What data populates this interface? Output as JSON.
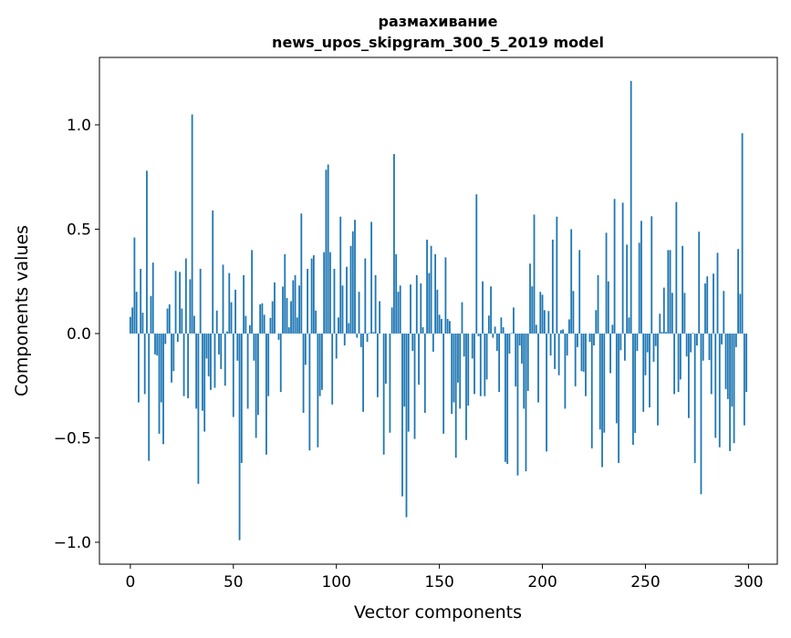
{
  "chart_data": {
    "type": "bar",
    "title": "размахивание",
    "subtitle": "news_upos_skipgram_300_5_2019 model",
    "xlabel": "Vector components",
    "ylabel": "Components values",
    "xlim": [
      -15,
      314
    ],
    "ylim": [
      -1.105,
      1.323
    ],
    "xticks": [
      0,
      50,
      100,
      150,
      200,
      250,
      300
    ],
    "xtick_labels": [
      "0",
      "50",
      "100",
      "150",
      "200",
      "250",
      "300"
    ],
    "yticks": [
      -1.0,
      -0.5,
      0.0,
      0.5,
      1.0
    ],
    "ytick_labels": [
      "−1.0",
      "−0.5",
      "0.0",
      "0.5",
      "1.0"
    ],
    "grid": false,
    "bar_color": "#1f77b4",
    "values": [
      0.08,
      0.125,
      0.46,
      0.2,
      -0.33,
      0.31,
      0.1,
      -0.29,
      0.78,
      -0.61,
      0.18,
      0.34,
      -0.1,
      -0.105,
      -0.48,
      -0.33,
      -0.53,
      -0.05,
      0.12,
      0.14,
      -0.235,
      -0.18,
      0.3,
      -0.04,
      0.295,
      0.12,
      -0.3,
      0.36,
      -0.31,
      0.26,
      1.05,
      0.085,
      -0.36,
      -0.72,
      0.31,
      -0.37,
      -0.47,
      -0.12,
      -0.205,
      -0.27,
      0.59,
      -0.26,
      0.11,
      -0.1,
      -0.17,
      0.33,
      -0.25,
      0.01,
      0.29,
      0.15,
      -0.4,
      0.21,
      -0.13,
      -0.99,
      -0.62,
      0.28,
      0.085,
      -0.36,
      0.04,
      0.4,
      -0.13,
      -0.5,
      -0.39,
      0.14,
      0.145,
      0.09,
      -0.58,
      -0.3,
      0.075,
      0.155,
      0.245,
      0.0,
      -0.03,
      -0.28,
      0.225,
      0.38,
      0.17,
      0.03,
      0.155,
      0.255,
      0.28,
      0.077,
      0.23,
      0.575,
      -0.38,
      -0.15,
      0.31,
      -0.56,
      0.36,
      0.375,
      0.11,
      -0.545,
      -0.3,
      -0.27,
      0.39,
      0.785,
      0.81,
      0.39,
      -0.34,
      0.31,
      -0.12,
      0.077,
      0.56,
      0.23,
      -0.057,
      0.32,
      0.05,
      0.42,
      0.49,
      0.545,
      -0.02,
      0.2,
      -0.065,
      -0.375,
      0.36,
      -0.04,
      0.003,
      0.535,
      0.007,
      0.28,
      -0.305,
      0.155,
      0.0,
      -0.58,
      -0.24,
      0.0,
      -0.475,
      0.125,
      0.86,
      0.38,
      0.2,
      0.23,
      -0.78,
      -0.35,
      -0.88,
      -0.47,
      0.235,
      -0.083,
      -0.505,
      0.28,
      -0.245,
      0.24,
      0.03,
      -0.38,
      0.45,
      0.29,
      0.42,
      -0.087,
      0.38,
      0.21,
      0.09,
      0.07,
      -0.48,
      0.365,
      0.07,
      0.06,
      -0.385,
      -0.33,
      -0.595,
      -0.235,
      -0.36,
      0.15,
      -0.11,
      -0.51,
      -0.345,
      0.0,
      -0.12,
      -0.29,
      0.667,
      -0.013,
      -0.3,
      0.25,
      -0.3,
      -0.22,
      0.086,
      0.226,
      -0.02,
      0.033,
      -0.083,
      -0.28,
      0.077,
      0.03,
      -0.615,
      -0.625,
      -0.096,
      0.003,
      0.125,
      -0.253,
      -0.68,
      -0.057,
      -0.144,
      -0.36,
      -0.66,
      -0.275,
      0.335,
      0.226,
      0.57,
      0.042,
      -0.33,
      0.2,
      0.186,
      0.112,
      -0.565,
      0.108,
      -0.105,
      0.45,
      -0.17,
      0.56,
      -0.2,
      0.016,
      0.02,
      -0.36,
      -0.105,
      0.068,
      0.5,
      0.204,
      -0.253,
      -0.065,
      0.4,
      -0.18,
      -0.183,
      -0.3,
      0.0,
      -0.04,
      -0.55,
      -0.057,
      0.112,
      0.28,
      -0.46,
      -0.64,
      -0.475,
      0.483,
      0.25,
      -0.19,
      0.042,
      0.645,
      -0.43,
      -0.62,
      -0.08,
      0.627,
      -0.13,
      0.426,
      0.077,
      1.21,
      -0.533,
      -0.476,
      -0.083,
      0.435,
      0.54,
      -0.375,
      -0.2,
      -0.09,
      -0.354,
      0.562,
      -0.135,
      -0.06,
      -0.44,
      0.095,
      0.007,
      0.22,
      0.007,
      0.4,
      0.4,
      0.195,
      -0.29,
      0.63,
      -0.28,
      -0.22,
      0.42,
      0.195,
      -0.11,
      -0.405,
      -0.09,
      0.003,
      -0.62,
      -0.057,
      0.488,
      -0.77,
      -0.13,
      0.24,
      0.274,
      -0.127,
      -0.29,
      0.287,
      -0.5,
      0.387,
      -0.545,
      -0.052,
      0.204,
      -0.266,
      -0.314,
      -0.563,
      -0.35,
      -0.525,
      -0.065,
      0.405,
      0.19,
      0.96,
      -0.44,
      -0.28
    ]
  }
}
